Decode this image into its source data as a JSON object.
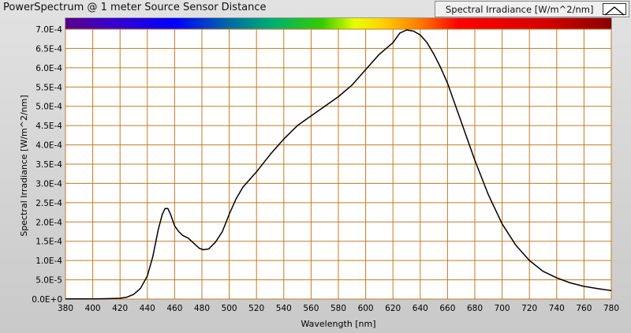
{
  "window_title": "PowerSpectrum @ 1 meter Source Sensor Distance",
  "legend": {
    "label": "Spectral Irradiance [W/m^2/nm]",
    "icon": "line-plot-icon"
  },
  "colors": {
    "plot_background": "#ffffff",
    "grid": "#c47a20",
    "line": "#000000"
  },
  "chart_data": {
    "type": "line",
    "xlabel": "Wavelength [nm]",
    "ylabel": "Spectral Irradiance [W/m^2/nm]",
    "xlim": [
      380,
      780
    ],
    "ylim": [
      0,
      0.0007
    ],
    "grid": true,
    "legend_position": "top-right",
    "color_band": "visible spectrum (violet to deep red) across top of plot",
    "x_ticks": [
      "380",
      "400",
      "420",
      "440",
      "460",
      "480",
      "500",
      "520",
      "540",
      "560",
      "580",
      "600",
      "620",
      "640",
      "660",
      "680",
      "700",
      "720",
      "740",
      "760",
      "780"
    ],
    "y_ticks": [
      "0.0E+0",
      "5.0E-5",
      "1.0E-4",
      "1.5E-4",
      "2.0E-4",
      "2.5E-4",
      "3.0E-4",
      "3.5E-4",
      "4.0E-4",
      "4.5E-4",
      "5.0E-4",
      "5.5E-4",
      "6.0E-4",
      "6.5E-4",
      "7.0E-4"
    ],
    "series": [
      {
        "name": "Spectral Irradiance [W/m^2/nm]",
        "x": [
          380,
          400,
          410,
          420,
          425,
          430,
          435,
          440,
          444,
          448,
          451,
          453,
          455,
          457,
          460,
          463,
          466,
          470,
          474,
          478,
          481,
          485,
          490,
          495,
          500,
          505,
          510,
          520,
          530,
          540,
          550,
          560,
          570,
          580,
          590,
          600,
          610,
          620,
          625,
          630,
          635,
          640,
          645,
          650,
          655,
          660,
          670,
          680,
          690,
          700,
          710,
          720,
          730,
          740,
          750,
          760,
          770,
          780
        ],
        "y": [
          5e-07,
          5e-07,
          1e-06,
          2e-06,
          5e-06,
          1.2e-05,
          2.8e-05,
          6e-05,
          0.00011,
          0.00018,
          0.00022,
          0.000235,
          0.000235,
          0.00022,
          0.00019,
          0.000175,
          0.000165,
          0.000158,
          0.000145,
          0.000132,
          0.000128,
          0.00013,
          0.000148,
          0.000175,
          0.00022,
          0.00026,
          0.00029,
          0.00033,
          0.000375,
          0.000415,
          0.00045,
          0.000475,
          0.0005,
          0.000525,
          0.000555,
          0.000595,
          0.000635,
          0.000665,
          0.00069,
          0.000698,
          0.000695,
          0.000685,
          0.000665,
          0.000635,
          0.0006,
          0.00056,
          0.00046,
          0.00036,
          0.00027,
          0.000195,
          0.00014,
          0.0001,
          7.2e-05,
          5.5e-05,
          4.2e-05,
          3.3e-05,
          2.7e-05,
          2.2e-05
        ]
      }
    ]
  }
}
